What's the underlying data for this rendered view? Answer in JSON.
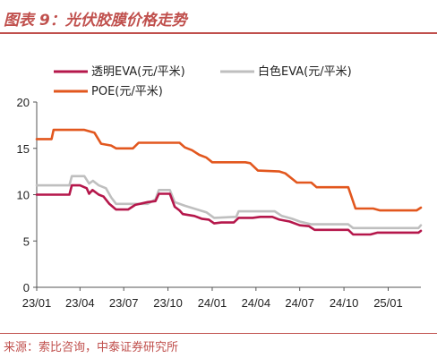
{
  "header": {
    "title": "图表 9：光伏胶膜价格走势"
  },
  "footer": {
    "source": "来源：索比咨询，中泰证券研究所"
  },
  "colors": {
    "accent": "#c0504d",
    "series_transparent_eva": "#b5174b",
    "series_white_eva": "#bfbfbf",
    "series_poe": "#e2571e"
  },
  "chart_data": {
    "type": "line",
    "title": "光伏胶膜价格走势",
    "xlabel": "",
    "ylabel": "",
    "ylim": [
      0,
      20
    ],
    "yticks": [
      0,
      5,
      10,
      15,
      20
    ],
    "xlim": [
      "2023-01-01",
      "2025-03-10"
    ],
    "xticks": [
      "23/01",
      "23/04",
      "23/07",
      "23/10",
      "24/01",
      "24/04",
      "24/07",
      "24/10",
      "25/01"
    ],
    "grid": false,
    "legend_position": "top",
    "series": [
      {
        "name": "透明EVA(元/平米)",
        "color": "#b5174b",
        "points": [
          [
            "2023-01-01",
            10.0
          ],
          [
            "2023-03-10",
            10.0
          ],
          [
            "2023-03-15",
            11.0
          ],
          [
            "2023-04-01",
            11.0
          ],
          [
            "2023-04-15",
            10.7
          ],
          [
            "2023-04-20",
            10.1
          ],
          [
            "2023-04-27",
            10.5
          ],
          [
            "2023-05-10",
            10.0
          ],
          [
            "2023-05-20",
            9.8
          ],
          [
            "2023-06-01",
            9.0
          ],
          [
            "2023-06-15",
            8.4
          ],
          [
            "2023-07-10",
            8.4
          ],
          [
            "2023-07-25",
            8.9
          ],
          [
            "2023-08-20",
            9.2
          ],
          [
            "2023-09-05",
            9.3
          ],
          [
            "2023-09-12",
            10.1
          ],
          [
            "2023-10-05",
            10.1
          ],
          [
            "2023-10-15",
            8.7
          ],
          [
            "2023-10-25",
            8.3
          ],
          [
            "2023-11-01",
            7.9
          ],
          [
            "2023-11-25",
            7.7
          ],
          [
            "2023-12-10",
            7.4
          ],
          [
            "2023-12-25",
            7.3
          ],
          [
            "2024-01-05",
            6.9
          ],
          [
            "2024-01-20",
            7.0
          ],
          [
            "2024-02-15",
            7.0
          ],
          [
            "2024-02-25",
            7.5
          ],
          [
            "2024-03-25",
            7.5
          ],
          [
            "2024-04-10",
            7.6
          ],
          [
            "2024-05-05",
            7.6
          ],
          [
            "2024-05-20",
            7.3
          ],
          [
            "2024-06-10",
            7.1
          ],
          [
            "2024-07-01",
            6.7
          ],
          [
            "2024-07-20",
            6.6
          ],
          [
            "2024-08-01",
            6.2
          ],
          [
            "2024-10-10",
            6.2
          ],
          [
            "2024-10-20",
            5.7
          ],
          [
            "2024-11-25",
            5.7
          ],
          [
            "2024-12-10",
            5.9
          ],
          [
            "2025-03-05",
            5.9
          ],
          [
            "2025-03-10",
            6.1
          ]
        ]
      },
      {
        "name": "白色EVA(元/平米)",
        "color": "#bfbfbf",
        "points": [
          [
            "2023-01-01",
            11.0
          ],
          [
            "2023-03-10",
            11.0
          ],
          [
            "2023-03-15",
            12.0
          ],
          [
            "2023-04-10",
            12.0
          ],
          [
            "2023-04-20",
            11.2
          ],
          [
            "2023-04-28",
            11.5
          ],
          [
            "2023-05-10",
            11.0
          ],
          [
            "2023-05-25",
            10.7
          ],
          [
            "2023-06-05",
            9.7
          ],
          [
            "2023-06-15",
            9.0
          ],
          [
            "2023-08-20",
            9.0
          ],
          [
            "2023-09-05",
            9.5
          ],
          [
            "2023-09-12",
            10.5
          ],
          [
            "2023-10-05",
            10.5
          ],
          [
            "2023-10-15",
            9.2
          ],
          [
            "2023-11-05",
            8.8
          ],
          [
            "2023-12-01",
            8.4
          ],
          [
            "2023-12-20",
            8.1
          ],
          [
            "2024-01-05",
            7.5
          ],
          [
            "2024-02-20",
            7.6
          ],
          [
            "2024-02-25",
            8.2
          ],
          [
            "2024-05-10",
            8.2
          ],
          [
            "2024-05-25",
            7.7
          ],
          [
            "2024-06-15",
            7.4
          ],
          [
            "2024-07-01",
            7.1
          ],
          [
            "2024-07-25",
            6.8
          ],
          [
            "2024-10-10",
            6.8
          ],
          [
            "2024-10-20",
            6.4
          ],
          [
            "2025-03-05",
            6.4
          ],
          [
            "2025-03-10",
            6.7
          ]
        ]
      },
      {
        "name": "POE(元/平米)",
        "color": "#e2571e",
        "points": [
          [
            "2023-01-01",
            16.0
          ],
          [
            "2023-02-01",
            16.0
          ],
          [
            "2023-02-05",
            17.0
          ],
          [
            "2023-04-10",
            17.0
          ],
          [
            "2023-05-01",
            16.7
          ],
          [
            "2023-05-15",
            15.5
          ],
          [
            "2023-06-05",
            15.3
          ],
          [
            "2023-06-15",
            15.0
          ],
          [
            "2023-07-20",
            15.0
          ],
          [
            "2023-08-01",
            15.6
          ],
          [
            "2023-10-25",
            15.6
          ],
          [
            "2023-11-05",
            15.1
          ],
          [
            "2023-11-20",
            14.8
          ],
          [
            "2023-12-05",
            14.3
          ],
          [
            "2023-12-20",
            14.0
          ],
          [
            "2024-01-01",
            13.5
          ],
          [
            "2024-03-10",
            13.5
          ],
          [
            "2024-03-20",
            13.4
          ],
          [
            "2024-04-05",
            12.6
          ],
          [
            "2024-05-20",
            12.5
          ],
          [
            "2024-06-01",
            12.3
          ],
          [
            "2024-06-25",
            11.3
          ],
          [
            "2024-07-25",
            11.3
          ],
          [
            "2024-08-05",
            10.8
          ],
          [
            "2024-10-10",
            10.8
          ],
          [
            "2024-10-25",
            8.5
          ],
          [
            "2024-12-01",
            8.5
          ],
          [
            "2024-12-15",
            8.3
          ],
          [
            "2025-03-01",
            8.3
          ],
          [
            "2025-03-10",
            8.6
          ]
        ]
      }
    ]
  }
}
